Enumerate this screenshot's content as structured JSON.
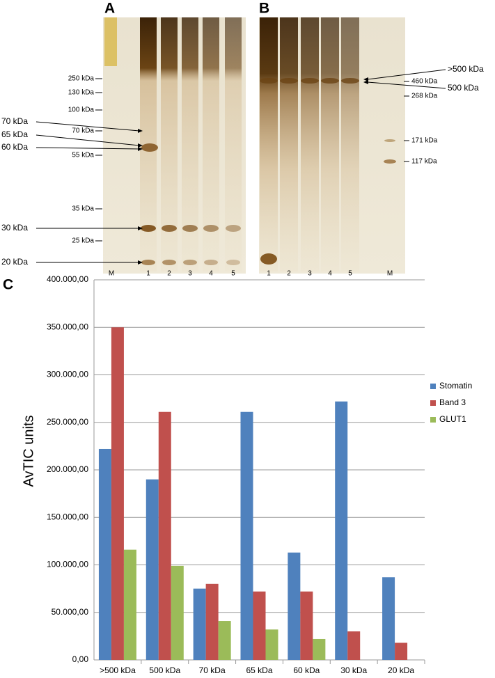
{
  "panel_a": {
    "letter": "A",
    "marker_labels": [
      "250 kDa",
      "130 kDa",
      "100 kDa",
      "70 kDa",
      "55 kDa",
      "35 kDa",
      "25 kDa"
    ],
    "band_labels": [
      "70 kDa",
      "65 kDa",
      "60 kDa",
      "30 kDa",
      "20 kDa"
    ],
    "lane_labels": [
      "M",
      "1",
      "2",
      "3",
      "4",
      "5"
    ]
  },
  "panel_b": {
    "letter": "B",
    "marker_labels": [
      "460 kDa",
      "268 kDa",
      "171 kDa",
      "117 kDa"
    ],
    "band_labels": [
      ">500 kDa",
      "500 kDa"
    ],
    "lane_labels": [
      "1",
      "2",
      "3",
      "4",
      "5",
      "M"
    ]
  },
  "chart_data": {
    "type": "bar",
    "panel_letter": "C",
    "y_label": "AvTIC units",
    "categories": [
      ">500 kDa",
      "500 kDa",
      "70 kDa",
      "65 kDa",
      "60 kDa",
      "30 kDa",
      "20 kDa"
    ],
    "series": [
      {
        "name": "Stomatin",
        "color": "#4f81bd",
        "values": [
          222000,
          190000,
          75000,
          261000,
          113000,
          272000,
          87000
        ]
      },
      {
        "name": "Band 3",
        "color": "#c0504d",
        "values": [
          350000,
          261000,
          80000,
          72000,
          72000,
          30000,
          18000
        ]
      },
      {
        "name": "GLUT1",
        "color": "#9bbb59",
        "values": [
          116000,
          99000,
          41000,
          32000,
          22000,
          0,
          0
        ]
      }
    ],
    "ylim": [
      0,
      400000
    ],
    "yticks": [
      {
        "value": 0,
        "label": "0,00"
      },
      {
        "value": 50000,
        "label": "50.000,00"
      },
      {
        "value": 100000,
        "label": "100.000,00"
      },
      {
        "value": 150000,
        "label": "150.000,00"
      },
      {
        "value": 200000,
        "label": "200.000,00"
      },
      {
        "value": 250000,
        "label": "250.000,00"
      },
      {
        "value": 300000,
        "label": "300.000,00"
      },
      {
        "value": 350000,
        "label": "350.000,00"
      },
      {
        "value": 400000,
        "label": "400.000,00"
      }
    ],
    "grid": true,
    "legend": "right"
  }
}
